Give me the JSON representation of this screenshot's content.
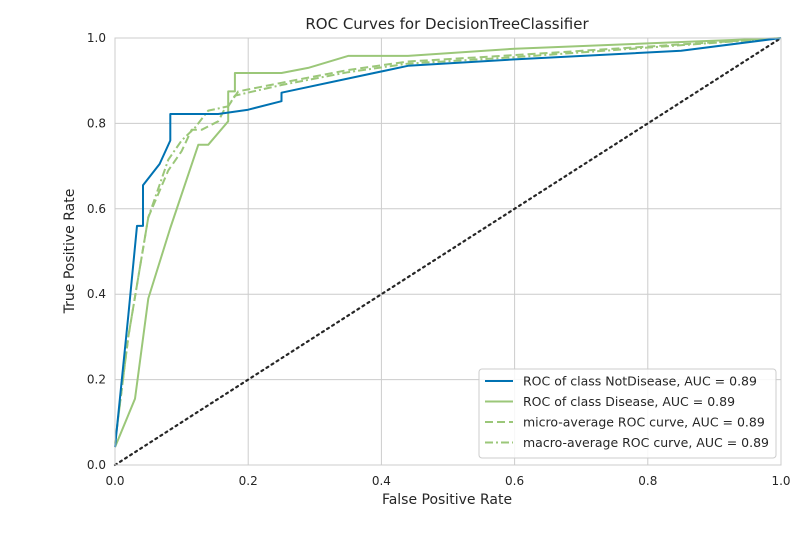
{
  "chart_data": {
    "type": "line",
    "title": "ROC Curves for DecisionTreeClassifier",
    "xlabel": "False Positive Rate",
    "ylabel": "True Positive Rate",
    "xlim": [
      0,
      1
    ],
    "ylim": [
      0,
      1
    ],
    "xticks": [
      "0.0",
      "0.2",
      "0.4",
      "0.6",
      "0.8",
      "1.0"
    ],
    "yticks": [
      "0.0",
      "0.2",
      "0.4",
      "0.6",
      "0.8",
      "1.0"
    ],
    "grid": true,
    "legend_position": "bottom-right",
    "background": "#eaeaf2",
    "series": [
      {
        "name": "ROC of class NotDisease, AUC = 0.89",
        "color": "#0072b2",
        "style": "solid",
        "x": [
          0,
          0.02,
          0.033,
          0.042,
          0.042,
          0.067,
          0.083,
          0.083,
          0.155,
          0.2,
          0.25,
          0.25,
          0.44,
          0.6,
          0.85,
          1.0
        ],
        "y": [
          0.042,
          0.35,
          0.56,
          0.56,
          0.655,
          0.705,
          0.76,
          0.822,
          0.822,
          0.832,
          0.852,
          0.872,
          0.935,
          0.95,
          0.97,
          1.0
        ]
      },
      {
        "name": "ROC of class Disease, AUC = 0.89",
        "color": "#9bc779",
        "style": "solid",
        "x": [
          0,
          0.03,
          0.05,
          0.083,
          0.125,
          0.14,
          0.17,
          0.17,
          0.18,
          0.18,
          0.25,
          0.29,
          0.35,
          0.44,
          0.6,
          1.0
        ],
        "y": [
          0.042,
          0.155,
          0.39,
          0.555,
          0.75,
          0.75,
          0.805,
          0.875,
          0.875,
          0.918,
          0.918,
          0.93,
          0.958,
          0.958,
          0.975,
          1.0
        ]
      },
      {
        "name": "micro-average ROC curve, AUC = 0.89",
        "color": "#9bc779",
        "style": "dashed",
        "x": [
          0,
          0.02,
          0.05,
          0.08,
          0.1,
          0.115,
          0.13,
          0.155,
          0.165,
          0.17,
          0.185,
          0.25,
          0.35,
          0.44,
          0.6,
          1.0
        ],
        "y": [
          0.05,
          0.3,
          0.58,
          0.69,
          0.735,
          0.785,
          0.785,
          0.805,
          0.835,
          0.84,
          0.875,
          0.895,
          0.925,
          0.945,
          0.96,
          1.0
        ]
      },
      {
        "name": "macro-average ROC curve, AUC = 0.89",
        "color": "#9bc779",
        "style": "dashdot",
        "x": [
          0,
          0.02,
          0.05,
          0.08,
          0.1,
          0.12,
          0.14,
          0.155,
          0.17,
          0.18,
          0.25,
          0.35,
          0.44,
          0.6,
          1.0
        ],
        "y": [
          0.05,
          0.3,
          0.58,
          0.715,
          0.76,
          0.79,
          0.83,
          0.835,
          0.84,
          0.865,
          0.89,
          0.92,
          0.94,
          0.955,
          1.0
        ]
      },
      {
        "name": "",
        "color": "#262626",
        "style": "dotted",
        "x": [
          0,
          1
        ],
        "y": [
          0,
          1
        ]
      }
    ]
  }
}
